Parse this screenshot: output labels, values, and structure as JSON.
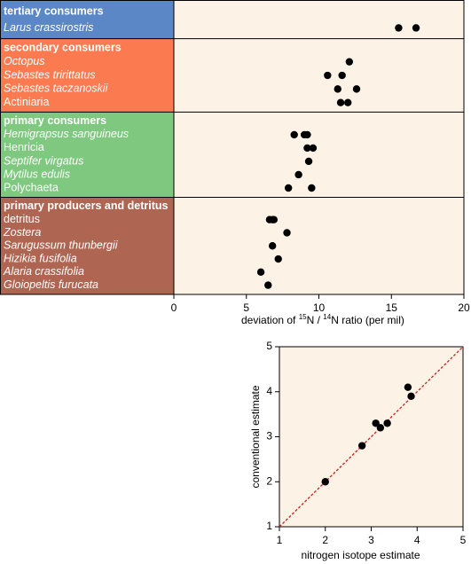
{
  "colors": {
    "plot_bg": "#fdf2e6",
    "tertiary": "#5b87c7",
    "secondary": "#fb7a4f",
    "primary": "#7fc87f",
    "producers": "#ae6552",
    "point": "#000000",
    "identity_line": "#d42020"
  },
  "chart_data": [
    {
      "type": "scatter",
      "title": "",
      "xlabel_parts": [
        "deviation of ",
        "15",
        "N / ",
        "14",
        "N ratio (per mil)"
      ],
      "ylabel": "",
      "xlim": [
        0,
        20
      ],
      "xticks": [
        0,
        5,
        10,
        15,
        20
      ],
      "groups": [
        {
          "name": "tertiary consumers",
          "color_key": "tertiary",
          "rows": [
            {
              "label": "Larus crassirostris",
              "italic": true,
              "x": [
                15.5,
                16.7
              ]
            }
          ]
        },
        {
          "name": "secondary consumers",
          "color_key": "secondary",
          "rows": [
            {
              "label": "Octopus",
              "italic": true,
              "x": [
                12.1
              ]
            },
            {
              "label": "Sebastes tririttatus",
              "italic": true,
              "x": [
                10.6,
                11.6
              ]
            },
            {
              "label": "Sebastes taczanoskii",
              "italic": true,
              "x": [
                11.3,
                12.6
              ]
            },
            {
              "label": "Actiniaria",
              "italic": false,
              "x": [
                11.5,
                12.0
              ]
            }
          ]
        },
        {
          "name": "primary consumers",
          "color_key": "primary",
          "rows": [
            {
              "label": "Hemigrapsus sanguineus",
              "italic": true,
              "x": [
                8.3,
                9.0,
                9.2
              ]
            },
            {
              "label": "Henricia",
              "italic": false,
              "x": [
                9.2,
                9.6
              ]
            },
            {
              "label": "Septifer virgatus",
              "italic": true,
              "x": [
                9.3
              ]
            },
            {
              "label": "Mytilus edulis",
              "italic": true,
              "x": [
                8.6
              ]
            },
            {
              "label": "Polychaeta",
              "italic": false,
              "x": [
                7.9,
                9.5
              ]
            }
          ]
        },
        {
          "name": "primary producers and detritus",
          "color_key": "producers",
          "rows": [
            {
              "label": "detritus",
              "italic": false,
              "x": [
                6.6,
                6.8,
                6.9
              ]
            },
            {
              "label": "Zostera",
              "italic": true,
              "x": [
                7.8
              ]
            },
            {
              "label": "Sarugussum thunbergii",
              "italic": true,
              "x": [
                6.8
              ]
            },
            {
              "label": "Hizikia fusifolia",
              "italic": true,
              "x": [
                7.2
              ]
            },
            {
              "label": "Alaria crassifolia",
              "italic": true,
              "x": [
                6.0
              ]
            },
            {
              "label": "Gloiopeltis furucata",
              "italic": true,
              "x": [
                6.5
              ]
            }
          ]
        }
      ]
    },
    {
      "type": "scatter",
      "title": "",
      "xlabel": "nitrogen isotope estimate",
      "ylabel": "conventional estimate",
      "xlim": [
        1,
        5
      ],
      "ylim": [
        1,
        5
      ],
      "xticks": [
        1,
        2,
        3,
        4,
        5
      ],
      "yticks": [
        1,
        2,
        3,
        4,
        5
      ],
      "identity_line": true,
      "points": [
        {
          "x": 2.0,
          "y": 2.0
        },
        {
          "x": 2.8,
          "y": 2.8
        },
        {
          "x": 3.1,
          "y": 3.3
        },
        {
          "x": 3.2,
          "y": 3.2
        },
        {
          "x": 3.35,
          "y": 3.3
        },
        {
          "x": 3.8,
          "y": 4.1
        },
        {
          "x": 3.87,
          "y": 3.9
        }
      ]
    }
  ]
}
